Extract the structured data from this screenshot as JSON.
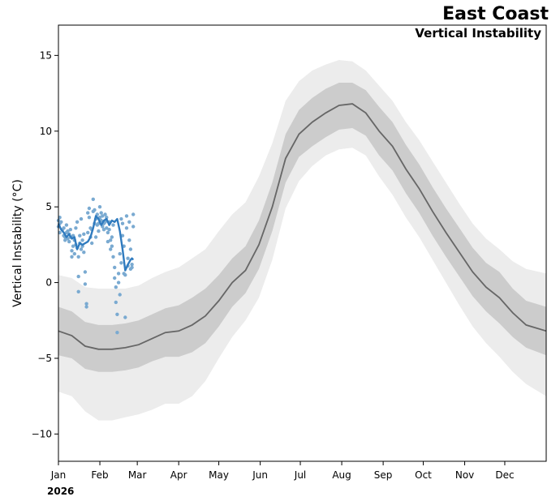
{
  "chart_data": {
    "type": "line",
    "title": "East Coast",
    "subtitle": "Vertical Instability",
    "ylabel": "Vertical Instability ($^\\circ$C)",
    "ylabel_display": "Vertical Instability (°C)",
    "xlabel": "",
    "year_label": "2026",
    "ylim": [
      -11.8,
      17.0
    ],
    "xlim": [
      0,
      365
    ],
    "yticks": [
      -10,
      -5,
      0,
      5,
      10,
      15
    ],
    "ytick_labels": [
      "−10",
      "−5",
      "0",
      "5",
      "10",
      "15"
    ],
    "xticks": [
      0,
      31,
      59,
      90,
      120,
      151,
      181,
      212,
      243,
      273,
      304,
      334
    ],
    "xtick_labels": [
      "Jan",
      "Feb",
      "Mar",
      "Apr",
      "May",
      "Jun",
      "Jul",
      "Aug",
      "Sep",
      "Oct",
      "Nov",
      "Dec"
    ],
    "grid": false,
    "colors": {
      "outer_band": "#ececec",
      "inner_band": "#cccccc",
      "mean_line": "#666666",
      "current_line": "#2f7bbf",
      "current_points": "#7aaad1"
    },
    "climatology": {
      "x": [
        0,
        10,
        20,
        30,
        40,
        50,
        60,
        70,
        80,
        90,
        100,
        110,
        120,
        130,
        140,
        150,
        160,
        170,
        180,
        190,
        200,
        210,
        220,
        230,
        240,
        250,
        260,
        270,
        280,
        290,
        300,
        310,
        320,
        330,
        340,
        350,
        365
      ],
      "mean": [
        -3.2,
        -3.5,
        -4.2,
        -4.4,
        -4.4,
        -4.3,
        -4.1,
        -3.7,
        -3.3,
        -3.2,
        -2.8,
        -2.2,
        -1.2,
        0.0,
        0.8,
        2.5,
        5.0,
        8.2,
        9.8,
        10.6,
        11.2,
        11.7,
        11.8,
        11.2,
        10.0,
        9.0,
        7.5,
        6.2,
        4.7,
        3.3,
        2.0,
        0.7,
        -0.3,
        -1.0,
        -2.0,
        -2.8,
        -3.2
      ],
      "p25": [
        -4.8,
        -5.0,
        -5.7,
        -5.9,
        -5.9,
        -5.8,
        -5.6,
        -5.2,
        -4.9,
        -4.9,
        -4.6,
        -4.0,
        -2.9,
        -1.6,
        -0.7,
        0.9,
        3.4,
        6.6,
        8.3,
        9.0,
        9.6,
        10.1,
        10.2,
        9.7,
        8.4,
        7.4,
        5.9,
        4.6,
        3.1,
        1.7,
        0.4,
        -0.9,
        -1.9,
        -2.7,
        -3.6,
        -4.3,
        -4.8
      ],
      "p75": [
        -1.6,
        -1.9,
        -2.6,
        -2.8,
        -2.8,
        -2.7,
        -2.5,
        -2.1,
        -1.7,
        -1.5,
        -1.0,
        -0.4,
        0.5,
        1.6,
        2.4,
        4.1,
        6.6,
        9.8,
        11.4,
        12.2,
        12.8,
        13.2,
        13.2,
        12.7,
        11.6,
        10.6,
        9.1,
        7.8,
        6.3,
        4.9,
        3.6,
        2.3,
        1.3,
        0.7,
        -0.4,
        -1.2,
        -1.6
      ],
      "p05": [
        -7.2,
        -7.5,
        -8.5,
        -9.1,
        -9.1,
        -8.9,
        -8.7,
        -8.4,
        -8.0,
        -8.0,
        -7.5,
        -6.5,
        -5.0,
        -3.6,
        -2.5,
        -1.0,
        1.5,
        4.9,
        6.7,
        7.7,
        8.4,
        8.8,
        8.9,
        8.4,
        7.0,
        5.8,
        4.3,
        3.0,
        1.5,
        0.0,
        -1.5,
        -2.9,
        -4.0,
        -4.9,
        -5.9,
        -6.7,
        -7.5
      ],
      "p95": [
        0.5,
        0.3,
        -0.3,
        -0.4,
        -0.4,
        -0.4,
        -0.2,
        0.3,
        0.7,
        1.0,
        1.6,
        2.2,
        3.4,
        4.5,
        5.3,
        7.0,
        9.2,
        12.0,
        13.3,
        14.0,
        14.4,
        14.7,
        14.6,
        14.0,
        13.0,
        12.0,
        10.6,
        9.4,
        8.0,
        6.6,
        5.2,
        3.9,
        2.9,
        2.2,
        1.4,
        0.9,
        0.6
      ]
    },
    "current_year": {
      "x": [
        0,
        2,
        4,
        6,
        8,
        10,
        12,
        14,
        16,
        18,
        20,
        22,
        24,
        26,
        28,
        30,
        32,
        34,
        36,
        38,
        40,
        42,
        44,
        46,
        48,
        50,
        52,
        54,
        55,
        56
      ],
      "y": [
        3.9,
        3.5,
        3.3,
        3.0,
        3.2,
        2.9,
        3.0,
        2.2,
        2.6,
        2.5,
        2.6,
        2.7,
        3.0,
        3.6,
        4.4,
        4.2,
        3.8,
        4.1,
        4.2,
        3.8,
        4.1,
        4.0,
        4.2,
        3.4,
        2.2,
        0.8,
        1.2,
        1.5,
        1.6,
        1.5
      ]
    },
    "scatter": {
      "x": [
        0,
        0,
        1,
        1,
        1,
        2,
        3,
        4,
        4,
        5,
        5,
        6,
        6,
        7,
        7,
        8,
        8,
        9,
        9,
        10,
        10,
        11,
        11,
        12,
        12,
        13,
        13,
        14,
        14,
        15,
        15,
        15,
        16,
        16,
        17,
        17,
        18,
        18,
        19,
        19,
        20,
        20,
        21,
        21,
        22,
        22,
        23,
        23,
        24,
        24,
        25,
        25,
        26,
        26,
        27,
        27,
        28,
        28,
        29,
        29,
        30,
        30,
        31,
        31,
        32,
        32,
        33,
        33,
        34,
        34,
        35,
        35,
        36,
        36,
        37,
        37,
        38,
        38,
        39,
        39,
        40,
        40,
        41,
        41,
        42,
        42,
        43,
        43,
        44,
        44,
        45,
        45,
        46,
        46,
        47,
        47,
        48,
        48,
        49,
        49,
        50,
        50,
        51,
        51,
        52,
        52,
        53,
        53,
        54,
        54,
        55,
        55,
        56,
        56
      ],
      "y": [
        4.1,
        3.7,
        4.3,
        3.9,
        3.3,
        4.0,
        3.5,
        3.6,
        3.1,
        3.0,
        2.8,
        3.8,
        3.3,
        3.4,
        2.9,
        3.2,
        2.7,
        3.5,
        3.0,
        2.1,
        1.7,
        3.1,
        2.4,
        2.8,
        1.9,
        2.5,
        3.6,
        2.3,
        4.0,
        0.4,
        -0.6,
        1.7,
        3.1,
        2.6,
        4.2,
        2.2,
        2.8,
        2.4,
        2.0,
        3.2,
        0.7,
        -0.1,
        -1.4,
        -1.6,
        3.3,
        4.6,
        4.9,
        4.3,
        3.6,
        3.0,
        3.5,
        2.6,
        5.5,
        4.7,
        4.8,
        3.9,
        4.2,
        3.0,
        4.5,
        3.8,
        3.9,
        3.4,
        5.0,
        4.3,
        4.6,
        4.1,
        4.4,
        3.7,
        3.9,
        3.5,
        4.5,
        4.0,
        4.3,
        3.6,
        3.3,
        2.7,
        4.0,
        3.5,
        2.8,
        2.2,
        3.0,
        2.4,
        3.8,
        1.7,
        1.0,
        0.3,
        -0.3,
        -1.3,
        -2.1,
        -3.3,
        0.6,
        0.0,
        1.9,
        -0.8,
        4.2,
        1.3,
        3.9,
        3.1,
        2.4,
        0.6,
        -2.3,
        0.5,
        4.4,
        3.6,
        1.6,
        1.1,
        4.0,
        2.8,
        2.2,
        0.9,
        1.0,
        1.2,
        4.5,
        3.7
      ]
    }
  }
}
